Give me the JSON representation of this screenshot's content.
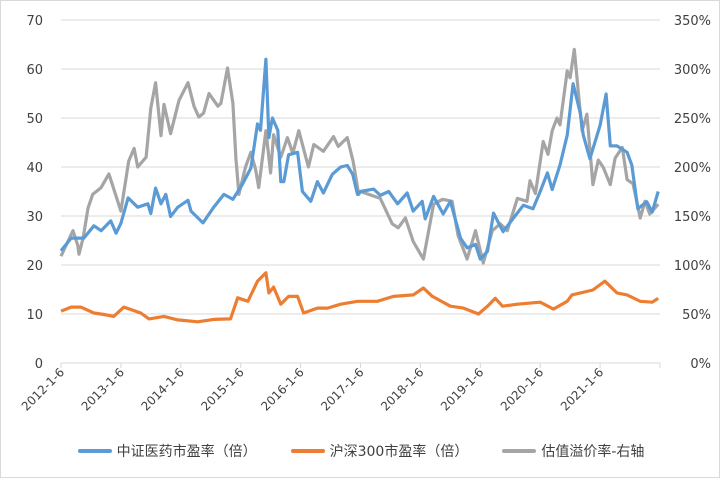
{
  "chart_data": {
    "type": "line",
    "title": "",
    "xlabel": "",
    "ylabel": "",
    "x_ticks": [
      "2012-1-6",
      "2013-1-6",
      "2014-1-6",
      "2015-1-6",
      "2016-1-6",
      "2017-1-6",
      "2018-1-6",
      "2019-1-6",
      "2020-1-6",
      "2021-1-6"
    ],
    "x_tick_values": [
      2012,
      2013,
      2014,
      2015,
      2016,
      2017,
      2018,
      2019,
      2020,
      2021
    ],
    "xlim": [
      2012,
      2022
    ],
    "ylim_left": [
      0,
      70
    ],
    "y_ticks_left": [
      "0",
      "10",
      "20",
      "30",
      "40",
      "50",
      "60",
      "70"
    ],
    "ylim_right": [
      0,
      350
    ],
    "y_ticks_right": [
      "0%",
      "50%",
      "100%",
      "150%",
      "200%",
      "250%",
      "300%",
      "350%"
    ],
    "grid": true,
    "legend_position": "bottom",
    "series": [
      {
        "name": "中证医药市盈率（倍）",
        "axis": "left",
        "color": "#5b9bd5",
        "points": [
          [
            2012.0,
            22.9
          ],
          [
            2012.17,
            25.5
          ],
          [
            2012.38,
            25.5
          ],
          [
            2012.55,
            28
          ],
          [
            2012.67,
            27
          ],
          [
            2012.83,
            29
          ],
          [
            2012.92,
            26.5
          ],
          [
            2013.0,
            28.5
          ],
          [
            2013.12,
            33.7
          ],
          [
            2013.28,
            31.8
          ],
          [
            2013.45,
            32.5
          ],
          [
            2013.5,
            30.5
          ],
          [
            2013.58,
            35.7
          ],
          [
            2013.67,
            32.5
          ],
          [
            2013.75,
            34.4
          ],
          [
            2013.83,
            29.9
          ],
          [
            2013.95,
            31.8
          ],
          [
            2014.12,
            33.2
          ],
          [
            2014.17,
            31
          ],
          [
            2014.37,
            28.6
          ],
          [
            2014.55,
            31.8
          ],
          [
            2014.72,
            34.4
          ],
          [
            2014.87,
            33.4
          ],
          [
            2015.03,
            36.5
          ],
          [
            2015.17,
            39.8
          ],
          [
            2015.28,
            48.8
          ],
          [
            2015.33,
            47.5
          ],
          [
            2015.42,
            62
          ],
          [
            2015.47,
            46
          ],
          [
            2015.53,
            50
          ],
          [
            2015.62,
            47.5
          ],
          [
            2015.67,
            37
          ],
          [
            2015.72,
            37
          ],
          [
            2015.8,
            42.5
          ],
          [
            2015.95,
            43
          ],
          [
            2016.03,
            35
          ],
          [
            2016.17,
            33
          ],
          [
            2016.28,
            37
          ],
          [
            2016.38,
            34.7
          ],
          [
            2016.53,
            38.5
          ],
          [
            2016.67,
            40
          ],
          [
            2016.78,
            40.3
          ],
          [
            2016.87,
            38.5
          ],
          [
            2016.95,
            34.4
          ],
          [
            2017.0,
            35
          ],
          [
            2017.22,
            35.5
          ],
          [
            2017.33,
            34.2
          ],
          [
            2017.47,
            35
          ],
          [
            2017.62,
            32.5
          ],
          [
            2017.78,
            34.7
          ],
          [
            2017.88,
            31
          ],
          [
            2018.03,
            33
          ],
          [
            2018.08,
            29.4
          ],
          [
            2018.22,
            34
          ],
          [
            2018.38,
            30.4
          ],
          [
            2018.5,
            33
          ],
          [
            2018.67,
            25.5
          ],
          [
            2018.78,
            23.5
          ],
          [
            2018.92,
            24.2
          ],
          [
            2019.0,
            21.2
          ],
          [
            2019.12,
            22.8
          ],
          [
            2019.22,
            30.6
          ],
          [
            2019.38,
            26.8
          ],
          [
            2019.55,
            29.5
          ],
          [
            2019.72,
            32.2
          ],
          [
            2019.88,
            31.5
          ],
          [
            2020.0,
            35
          ],
          [
            2020.12,
            38.8
          ],
          [
            2020.2,
            35.4
          ],
          [
            2020.33,
            40.4
          ],
          [
            2020.45,
            46.5
          ],
          [
            2020.55,
            57
          ],
          [
            2020.67,
            51
          ],
          [
            2020.72,
            46.5
          ],
          [
            2020.83,
            41.7
          ],
          [
            2021.0,
            48.5
          ],
          [
            2021.1,
            54.9
          ],
          [
            2021.17,
            44.3
          ],
          [
            2021.28,
            44.3
          ],
          [
            2021.45,
            43
          ],
          [
            2021.53,
            40.4
          ],
          [
            2021.63,
            31.5
          ],
          [
            2021.78,
            32.9
          ],
          [
            2021.87,
            30.8
          ],
          [
            2021.97,
            35
          ]
        ]
      },
      {
        "name": "沪深300市盈率（倍）",
        "axis": "left",
        "color": "#ed7d31",
        "points": [
          [
            2012.0,
            10.6
          ],
          [
            2012.17,
            11.4
          ],
          [
            2012.33,
            11.4
          ],
          [
            2012.55,
            10.2
          ],
          [
            2012.72,
            9.9
          ],
          [
            2012.88,
            9.5
          ],
          [
            2013.05,
            11.4
          ],
          [
            2013.33,
            10.2
          ],
          [
            2013.47,
            9.0
          ],
          [
            2013.72,
            9.5
          ],
          [
            2013.95,
            8.8
          ],
          [
            2014.28,
            8.4
          ],
          [
            2014.55,
            8.9
          ],
          [
            2014.83,
            9.0
          ],
          [
            2014.95,
            13.3
          ],
          [
            2015.12,
            12.6
          ],
          [
            2015.28,
            16.7
          ],
          [
            2015.42,
            18.4
          ],
          [
            2015.47,
            14.3
          ],
          [
            2015.55,
            15.5
          ],
          [
            2015.67,
            12.0
          ],
          [
            2015.8,
            13.6
          ],
          [
            2015.95,
            13.6
          ],
          [
            2016.05,
            10.2
          ],
          [
            2016.28,
            11.2
          ],
          [
            2016.45,
            11.2
          ],
          [
            2016.67,
            12.0
          ],
          [
            2016.95,
            12.6
          ],
          [
            2017.28,
            12.6
          ],
          [
            2017.55,
            13.6
          ],
          [
            2017.88,
            13.9
          ],
          [
            2018.05,
            15.3
          ],
          [
            2018.2,
            13.6
          ],
          [
            2018.5,
            11.6
          ],
          [
            2018.72,
            11.2
          ],
          [
            2018.97,
            10.0
          ],
          [
            2019.12,
            11.6
          ],
          [
            2019.25,
            13.2
          ],
          [
            2019.37,
            11.6
          ],
          [
            2019.62,
            12.0
          ],
          [
            2020.0,
            12.4
          ],
          [
            2020.22,
            11.0
          ],
          [
            2020.45,
            12.6
          ],
          [
            2020.53,
            13.9
          ],
          [
            2020.88,
            14.9
          ],
          [
            2021.08,
            16.7
          ],
          [
            2021.28,
            14.3
          ],
          [
            2021.45,
            13.9
          ],
          [
            2021.67,
            12.6
          ],
          [
            2021.87,
            12.4
          ],
          [
            2021.97,
            13.2
          ]
        ]
      },
      {
        "name": "估值溢价率-右轴",
        "axis": "right",
        "unit": "%",
        "color": "#a5a5a5",
        "points": [
          [
            2012.0,
            109
          ],
          [
            2012.2,
            135
          ],
          [
            2012.28,
            120
          ],
          [
            2012.3,
            111
          ],
          [
            2012.37,
            128
          ],
          [
            2012.45,
            158
          ],
          [
            2012.53,
            172
          ],
          [
            2012.67,
            179
          ],
          [
            2012.8,
            193
          ],
          [
            2013.0,
            155
          ],
          [
            2013.13,
            206
          ],
          [
            2013.22,
            219
          ],
          [
            2013.28,
            200
          ],
          [
            2013.42,
            210
          ],
          [
            2013.5,
            260
          ],
          [
            2013.58,
            286
          ],
          [
            2013.67,
            232
          ],
          [
            2013.72,
            264
          ],
          [
            2013.83,
            234
          ],
          [
            2013.97,
            268
          ],
          [
            2014.12,
            286
          ],
          [
            2014.22,
            262
          ],
          [
            2014.3,
            251
          ],
          [
            2014.38,
            255
          ],
          [
            2014.47,
            275
          ],
          [
            2014.62,
            262
          ],
          [
            2014.67,
            265
          ],
          [
            2014.78,
            301
          ],
          [
            2014.87,
            265
          ],
          [
            2014.92,
            209
          ],
          [
            2014.97,
            172
          ],
          [
            2015.08,
            200
          ],
          [
            2015.17,
            215
          ],
          [
            2015.25,
            197
          ],
          [
            2015.3,
            179
          ],
          [
            2015.42,
            237
          ],
          [
            2015.5,
            194
          ],
          [
            2015.55,
            233
          ],
          [
            2015.67,
            210
          ],
          [
            2015.78,
            230
          ],
          [
            2015.87,
            214
          ],
          [
            2015.97,
            237
          ],
          [
            2016.13,
            200
          ],
          [
            2016.22,
            223
          ],
          [
            2016.38,
            216
          ],
          [
            2016.55,
            231
          ],
          [
            2016.63,
            221
          ],
          [
            2016.78,
            230
          ],
          [
            2016.88,
            205
          ],
          [
            2016.97,
            172
          ],
          [
            2017.0,
            175
          ],
          [
            2017.33,
            168
          ],
          [
            2017.53,
            142
          ],
          [
            2017.63,
            138
          ],
          [
            2017.75,
            148
          ],
          [
            2017.88,
            124
          ],
          [
            2018.05,
            106
          ],
          [
            2018.22,
            162
          ],
          [
            2018.37,
            167
          ],
          [
            2018.53,
            165
          ],
          [
            2018.63,
            130
          ],
          [
            2018.78,
            106
          ],
          [
            2018.92,
            135
          ],
          [
            2019.05,
            102
          ],
          [
            2019.2,
            135
          ],
          [
            2019.33,
            142
          ],
          [
            2019.45,
            135
          ],
          [
            2019.62,
            168
          ],
          [
            2019.78,
            165
          ],
          [
            2019.83,
            186
          ],
          [
            2019.92,
            173
          ],
          [
            2020.05,
            226
          ],
          [
            2020.13,
            213
          ],
          [
            2020.2,
            237
          ],
          [
            2020.28,
            250
          ],
          [
            2020.33,
            243
          ],
          [
            2020.45,
            298
          ],
          [
            2020.5,
            291
          ],
          [
            2020.57,
            320
          ],
          [
            2020.63,
            281
          ],
          [
            2020.7,
            237
          ],
          [
            2020.78,
            254
          ],
          [
            2020.88,
            182
          ],
          [
            2020.97,
            207
          ],
          [
            2021.05,
            200
          ],
          [
            2021.17,
            182
          ],
          [
            2021.25,
            209
          ],
          [
            2021.37,
            220
          ],
          [
            2021.45,
            187
          ],
          [
            2021.55,
            183
          ],
          [
            2021.67,
            148
          ],
          [
            2021.75,
            165
          ],
          [
            2021.83,
            152
          ],
          [
            2021.97,
            162
          ]
        ]
      }
    ]
  }
}
